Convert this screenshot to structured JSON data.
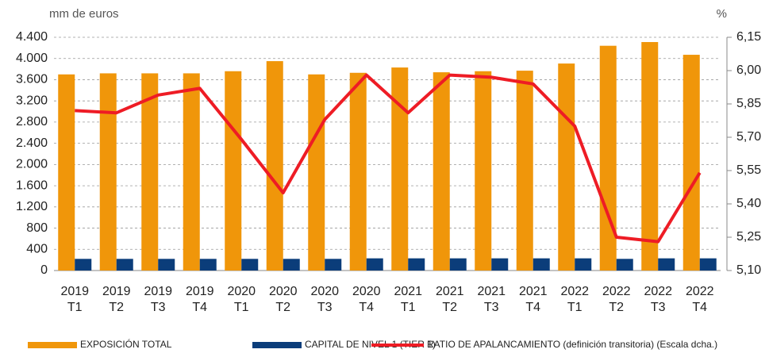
{
  "chart_data": {
    "type": "bar-line",
    "y_unit_label": "mm de euros",
    "y2_unit_label": "%",
    "categories": [
      [
        "2019",
        "T1"
      ],
      [
        "2019",
        "T2"
      ],
      [
        "2019",
        "T3"
      ],
      [
        "2019",
        "T4"
      ],
      [
        "2020",
        "T1"
      ],
      [
        "2020",
        "T2"
      ],
      [
        "2020",
        "T3"
      ],
      [
        "2020",
        "T4"
      ],
      [
        "2021",
        "T1"
      ],
      [
        "2021",
        "T2"
      ],
      [
        "2021",
        "T3"
      ],
      [
        "2021",
        "T4"
      ],
      [
        "2022",
        "T1"
      ],
      [
        "2022",
        "T2"
      ],
      [
        "2022",
        "T3"
      ],
      [
        "2022",
        "T4"
      ]
    ],
    "series": [
      {
        "name": "EXPOSICIÓN TOTAL",
        "type": "bar",
        "color": "#f0960a",
        "values": [
          3700,
          3720,
          3720,
          3720,
          3760,
          3950,
          3700,
          3730,
          3830,
          3740,
          3760,
          3770,
          3905,
          4240,
          4310,
          4070
        ]
      },
      {
        "name": "CAPITAL DE NIVEL 1 (TIER 1)",
        "type": "bar",
        "color": "#0b3d7a",
        "values": [
          220,
          220,
          220,
          220,
          220,
          220,
          220,
          230,
          230,
          230,
          230,
          230,
          230,
          220,
          230,
          230
        ]
      },
      {
        "name": "RATIO DE APALANCAMIENTO (definición transitoria) (Escala dcha.)",
        "type": "line",
        "axis": "y2",
        "color": "#ee1c25",
        "values": [
          5.82,
          5.81,
          5.89,
          5.92,
          5.69,
          5.45,
          5.78,
          5.98,
          5.81,
          5.98,
          5.97,
          5.94,
          5.75,
          5.25,
          5.23,
          5.54
        ]
      }
    ],
    "ylim": [
      0,
      4400
    ],
    "yticks": [
      0,
      400,
      800,
      {
        "value": 1200,
        "label": "1.200"
      },
      {
        "value": 1600,
        "label": "1.600"
      },
      {
        "value": 2000,
        "label": "2.000"
      },
      {
        "value": 2400,
        "label": "2.400"
      },
      {
        "value": 2800,
        "label": "2.800"
      },
      {
        "value": 3200,
        "label": "3.200"
      },
      {
        "value": 3600,
        "label": "3.600"
      },
      {
        "value": 4000,
        "label": "4.000"
      },
      {
        "value": 4400,
        "label": "4.400"
      }
    ],
    "y2lim": [
      5.1,
      6.15
    ],
    "y2ticks": [
      {
        "value": 5.1,
        "label": "5,10"
      },
      {
        "value": 5.25,
        "label": "5,25"
      },
      {
        "value": 5.4,
        "label": "5,40"
      },
      {
        "value": 5.55,
        "label": "5,55"
      },
      {
        "value": 5.7,
        "label": "5,70"
      },
      {
        "value": 5.85,
        "label": "5,85"
      },
      {
        "value": 6.0,
        "label": "6,00"
      },
      {
        "value": 6.15,
        "label": "6,15"
      }
    ],
    "grid": true,
    "legend": "bottom"
  }
}
